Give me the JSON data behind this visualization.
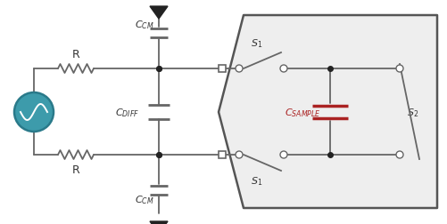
{
  "background_color": "#ffffff",
  "line_color": "#666666",
  "line_width": 1.3,
  "component_color": "#333333",
  "red_color": "#aa2222",
  "gray_fill": "#eeeeee",
  "block_edge": "#444444",
  "teal_fill": "#3d9bab",
  "teal_edge": "#2a7a8a",
  "dot_color": "#222222",
  "white": "#ffffff"
}
